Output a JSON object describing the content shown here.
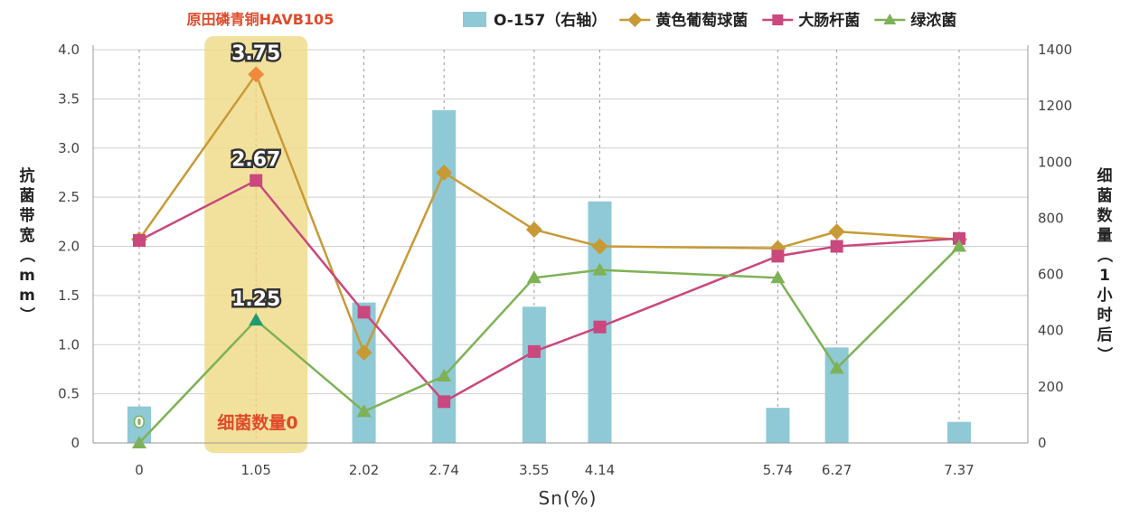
{
  "colors": {
    "bar": "#8fc9d6",
    "staph": "#c89a36",
    "ecoli": "#c9487d",
    "pseudo": "#7eb256",
    "highlight": "#f0dc8c",
    "accent": "#e04a2a",
    "grid": "#cfcfcf"
  },
  "chart_data": {
    "type": "bar+line",
    "title": "",
    "highlight_label": "原田磷青铜HAVB105",
    "highlight_note": "细菌数量0",
    "xlabel": "Sn(%)",
    "ylabel_left": "抗菌带宽（mm）",
    "ylabel_right": "细菌数量（1小时后）",
    "categories": [
      "0",
      "1.05",
      "2.02",
      "2.74",
      "3.55",
      "4.14",
      "5.74",
      "6.27",
      "7.37"
    ],
    "x": [
      0,
      1.05,
      2.02,
      2.74,
      3.55,
      4.14,
      5.74,
      6.27,
      7.37
    ],
    "ylim_left": [
      0,
      4.0
    ],
    "ylim_right": [
      0,
      1400
    ],
    "yticks_left": [
      "0",
      "0.5",
      "1.0",
      "1.5",
      "2.0",
      "2.5",
      "3.0",
      "3.5",
      "4.0"
    ],
    "yticks_right": [
      "0",
      "200",
      "400",
      "600",
      "800",
      "1000",
      "1200",
      "1400"
    ],
    "bar_series": {
      "name": "O-157（右轴）",
      "values": [
        130,
        0,
        500,
        1185,
        485,
        860,
        125,
        340,
        75
      ],
      "zero_label": "0"
    },
    "line_series": [
      {
        "name": "黄色葡萄球菌",
        "marker": "diamond",
        "color_key": "staph",
        "values": [
          2.07,
          3.75,
          0.92,
          2.75,
          2.17,
          2.0,
          1.98,
          2.15,
          2.07
        ]
      },
      {
        "name": "大肠杆菌",
        "marker": "square",
        "color_key": "ecoli",
        "values": [
          2.06,
          2.67,
          1.33,
          0.42,
          0.93,
          1.18,
          1.9,
          2.0,
          2.08
        ]
      },
      {
        "name": "绿浓菌",
        "marker": "triangle",
        "color_key": "pseudo",
        "values": [
          0.0,
          1.25,
          0.32,
          0.68,
          1.68,
          1.76,
          1.68,
          0.76,
          2.0
        ]
      }
    ],
    "annotations": [
      "3.75",
      "2.67",
      "1.25"
    ],
    "grid": true,
    "legend_position": "top"
  }
}
